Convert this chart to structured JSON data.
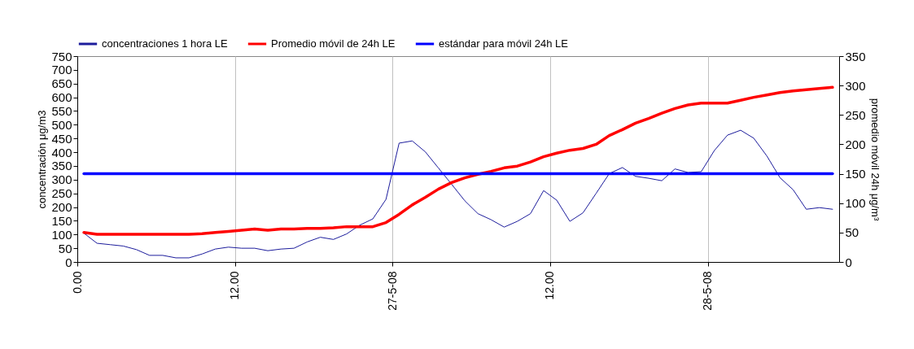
{
  "chart_data": {
    "type": "line",
    "ylabel": "concentración μg/m3",
    "y2label": "promedio móvil 24h  μg/m³",
    "x": [
      "--05-26T00:30",
      "--05-26T01:30",
      "--05-26T02:30",
      "--05-26T03:30",
      "--05-26T04:30",
      "--05-26T05:30",
      "--05-26T06:30",
      "--05-26T07:30",
      "--05-26T08:30",
      "--05-26T09:30",
      "--05-26T10:30",
      "--05-26T11:30",
      "--05-26T12:30",
      "--05-26T13:30",
      "--05-26T14:30",
      "--05-26T15:30",
      "--05-26T16:30",
      "--05-26T17:30",
      "--05-26T18:30",
      "--05-26T19:30",
      "--05-26T20:30",
      "--05-26T21:30",
      "--05-26T22:30",
      "--05-26T23:30",
      "--05-27T00:30",
      "--05-27T01:30",
      "--05-27T02:30",
      "--05-27T03:30",
      "--05-27T04:30",
      "--05-27T05:30",
      "--05-27T06:30",
      "--05-27T07:30",
      "--05-27T08:30",
      "--05-27T09:30",
      "--05-27T10:30",
      "--05-27T11:30",
      "--05-27T12:30",
      "--05-27T13:30",
      "--05-27T14:30",
      "--05-27T15:30",
      "--05-27T16:30",
      "--05-27T17:30",
      "--05-27T18:30",
      "--05-27T19:30",
      "--05-27T20:30",
      "--05-27T21:30",
      "--05-27T22:30",
      "--05-27T23:30",
      "--05-28T00:30",
      "--05-28T01:30",
      "--05-28T02:30",
      "--05-28T03:30",
      "--05-28T04:30",
      "--05-28T05:30",
      "--05-28T06:30",
      "--05-28T07:30",
      "--05-28T08:30",
      "--05-28T09:30"
    ],
    "xlim": [
      "--05-26T00:00",
      "--05-28T10:00"
    ],
    "xticks": [
      {
        "value": "--05-26T00:00",
        "label": "0.00"
      },
      {
        "value": "--05-26T12:00",
        "label": "12.00"
      },
      {
        "value": "--05-27T00:00",
        "label": "27-5-08"
      },
      {
        "value": "--05-27T12:00",
        "label": "12.00"
      },
      {
        "value": "--05-28T00:00",
        "label": "28-5-08"
      }
    ],
    "ylim": [
      0,
      750
    ],
    "yticks": [
      0,
      50,
      100,
      150,
      200,
      250,
      300,
      350,
      400,
      450,
      500,
      550,
      600,
      650,
      700,
      750
    ],
    "y2lim": [
      0,
      350
    ],
    "y2ticks": [
      0,
      50,
      100,
      150,
      200,
      250,
      300,
      350
    ],
    "grid": "x",
    "legend": "top",
    "marker": "none",
    "series": [
      {
        "name": "concentraciones 1 hora LE",
        "color": "#1c1c9c",
        "values": [
          105,
          68,
          63,
          58,
          45,
          24,
          24,
          15,
          15,
          29,
          47,
          54,
          50,
          50,
          41,
          47,
          50,
          73,
          90,
          82,
          102,
          134,
          157,
          228,
          433,
          441,
          401,
          342,
          283,
          223,
          176,
          154,
          127,
          148,
          176,
          260,
          225,
          148,
          179,
          250,
          322,
          344,
          312,
          305,
          296,
          339,
          326,
          329,
          406,
          462,
          480,
          451,
          386,
          307,
          263,
          192,
          198,
          192
        ]
      },
      {
        "name": "Promedio móvil de 24h LE",
        "color": "#ff0000",
        "axis": "y2",
        "values": [
          50,
          47,
          47,
          47,
          47,
          47,
          47,
          47,
          47,
          48,
          50,
          52,
          54,
          56,
          54,
          56,
          56,
          57,
          57,
          58,
          60,
          60,
          60,
          67,
          81,
          97,
          110,
          124,
          135,
          143,
          149,
          154,
          160,
          163,
          170,
          179,
          185,
          190,
          193,
          200,
          215,
          225,
          236,
          244,
          253,
          261,
          267,
          270,
          270,
          270,
          275,
          280,
          284,
          288,
          291,
          293,
          295,
          297
        ]
      },
      {
        "name": "estándar para móvil 24h LE",
        "color": "#0000ff",
        "axis": "y2",
        "values": [
          150,
          150,
          150,
          150,
          150,
          150,
          150,
          150,
          150,
          150,
          150,
          150,
          150,
          150,
          150,
          150,
          150,
          150,
          150,
          150,
          150,
          150,
          150,
          150,
          150,
          150,
          150,
          150,
          150,
          150,
          150,
          150,
          150,
          150,
          150,
          150,
          150,
          150,
          150,
          150,
          150,
          150,
          150,
          150,
          150,
          150,
          150,
          150,
          150,
          150,
          150,
          150,
          150,
          150,
          150,
          150,
          150,
          150
        ]
      }
    ]
  }
}
